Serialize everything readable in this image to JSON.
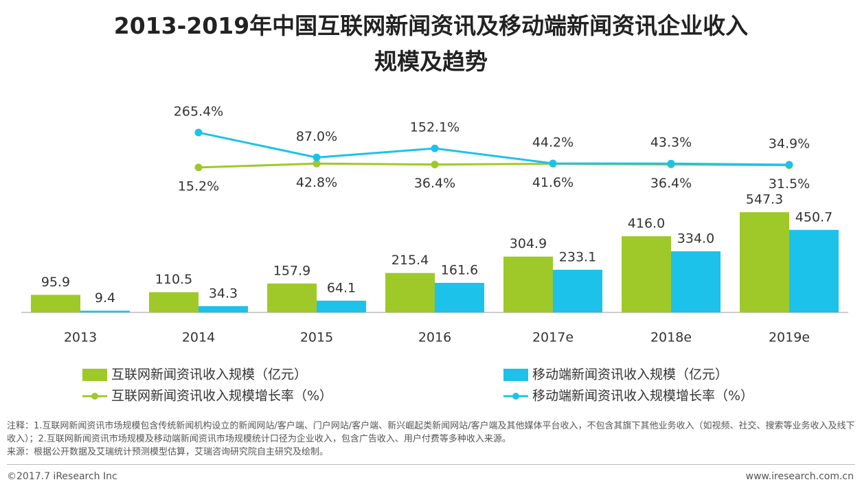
{
  "chart_data": {
    "type": "bar-line",
    "title": "2013-2019年中国互联网新闻资讯及移动端新闻资讯企业收入规模及趋势",
    "categories": [
      "2013",
      "2014",
      "2015",
      "2016",
      "2017e",
      "2018e",
      "2019e"
    ],
    "series": [
      {
        "name": "互联网新闻资讯收入规模（亿元）",
        "type": "bar",
        "color": "#9ec928",
        "values": [
          95.9,
          110.5,
          157.9,
          215.4,
          304.9,
          416.0,
          547.3
        ],
        "value_labels": [
          "95.9",
          "110.5",
          "157.9",
          "215.4",
          "304.9",
          "416.0",
          "547.3"
        ]
      },
      {
        "name": "移动端新闻资讯收入规模（亿元）",
        "type": "bar",
        "color": "#1cc2ea",
        "values": [
          9.4,
          34.3,
          64.1,
          161.6,
          233.1,
          334.0,
          450.7
        ],
        "value_labels": [
          "9.4",
          "34.3",
          "64.1",
          "161.6",
          "233.1",
          "334.0",
          "450.7"
        ]
      },
      {
        "name": "互联网新闻资讯收入规模增长率（%）",
        "type": "line",
        "axis": "y2",
        "color": "#9ec928",
        "values": [
          null,
          15.2,
          42.8,
          36.4,
          41.6,
          36.4,
          31.5
        ],
        "value_labels": [
          null,
          "15.2%",
          "42.8%",
          "36.4%",
          "41.6%",
          "36.4%",
          "31.5%"
        ]
      },
      {
        "name": "移动端新闻资讯收入规模增长率（%）",
        "type": "line",
        "axis": "y2",
        "color": "#1cc2ea",
        "values": [
          null,
          265.4,
          87.0,
          152.1,
          44.2,
          43.3,
          34.9
        ],
        "value_labels": [
          null,
          "265.4%",
          "87.0%",
          "152.1%",
          "44.2%",
          "43.3%",
          "34.9%"
        ]
      }
    ],
    "ylim": [
      0,
      600
    ],
    "y2lim": [
      0,
      600
    ],
    "note": "注释：1.互联网新闻资讯市场规模包含传统新闻机构设立的新闻网站/客户端、门户网站/客户端、新兴崛起类新闻网站/客户端及其他媒体平台收入，不包含其旗下其他业务收入（如视频、社交、搜索等业务收入及线下收入）；2.互联网新闻资讯市场规模及移动端新闻资讯市场规模统计口径为企业收入，包含广告收入、用户付费等多种收入来源。",
    "source": "来源：根据公开数据及艾瑞统计预测模型估算，艾瑞咨询研究院自主研究及绘制。",
    "copyright": "©2017.7 iResearch Inc",
    "website": "www.iresearch.com.cn"
  }
}
